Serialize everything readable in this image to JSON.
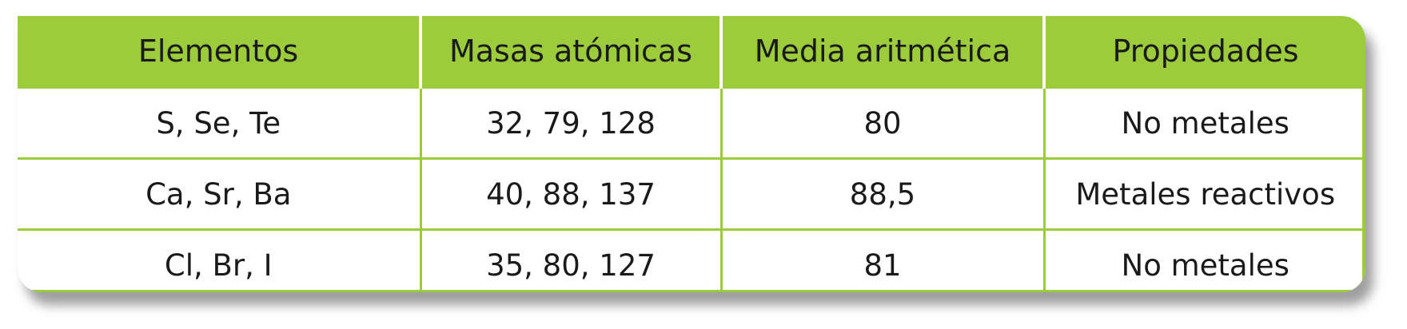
{
  "table": {
    "headers": [
      "Elementos",
      "Masas atómicas",
      "Media aritmética",
      "Propiedades"
    ],
    "rows": [
      [
        "S, Se, Te",
        "32, 79, 128",
        "80",
        "No metales"
      ],
      [
        "Ca, Sr, Ba",
        "40, 88, 137",
        "88,5",
        "Metales reactivos"
      ],
      [
        "Cl, Br, I",
        "35, 80, 127",
        "81",
        "No metales"
      ]
    ]
  },
  "colors": {
    "header_green": "#9ccb3b",
    "cell_background": "#ffffff",
    "text": "#1a1a1a"
  }
}
